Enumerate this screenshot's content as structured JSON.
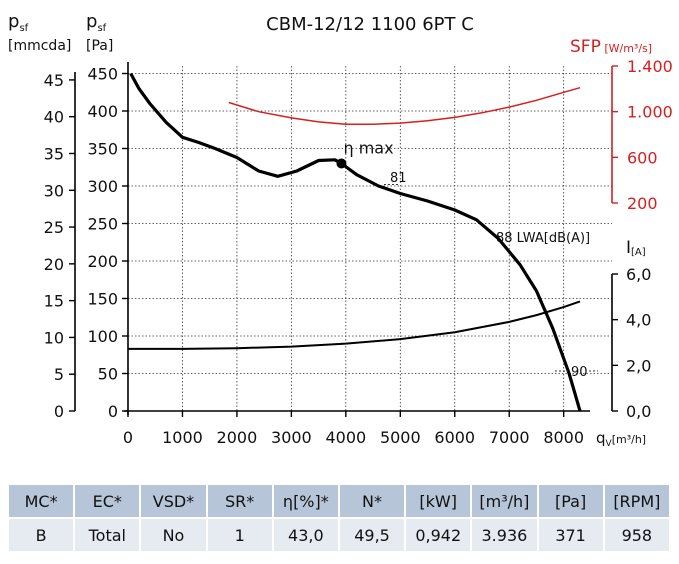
{
  "chart_data": {
    "type": "line",
    "title": "CBM-12/12 1100 6PT C",
    "xlabel": {
      "main": "q",
      "sub": "V",
      "unit": "[m³/h]"
    },
    "x_ticks": [
      0,
      1000,
      2000,
      3000,
      4000,
      5000,
      6000,
      7000,
      8000
    ],
    "xlim": [
      0,
      8600
    ],
    "y_left_outer": {
      "label_main": "p",
      "label_sub": "sf",
      "unit": "[mmcda]",
      "ticks": [
        0,
        5,
        10,
        15,
        20,
        25,
        30,
        35,
        40,
        45
      ]
    },
    "y_left_inner": {
      "label_main": "p",
      "label_sub": "sf",
      "unit": "[Pa]",
      "ticks": [
        0,
        50,
        100,
        150,
        200,
        250,
        300,
        350,
        400,
        450
      ],
      "ylim": [
        0,
        460
      ]
    },
    "y_right_sfp": {
      "label": "SFP",
      "unit": "[W/m³/s]",
      "ticks": [
        "200",
        "600",
        "1.000",
        "1.400"
      ],
      "ylim": [
        0,
        1400
      ],
      "color": "#d42020"
    },
    "y_right_current": {
      "label": "I",
      "unit": "[A]",
      "ticks": [
        "0,0",
        "2,0",
        "4,0",
        "6,0"
      ],
      "ylim": [
        0,
        6
      ]
    },
    "grid": true,
    "series": [
      {
        "role": "pressure",
        "unit": "Pa",
        "color": "#000000",
        "x": [
          50,
          200,
          400,
          700,
          1000,
          1300,
          1600,
          2000,
          2400,
          2750,
          3100,
          3500,
          3800,
          3920,
          4200,
          4600,
          5000,
          5500,
          6000,
          6400,
          6800,
          7200,
          7500,
          7800,
          8000,
          8100,
          8200,
          8300
        ],
        "y": [
          450,
          430,
          410,
          385,
          365,
          358,
          350,
          338,
          320,
          313,
          320,
          334,
          335,
          330,
          315,
          300,
          290,
          280,
          268,
          255,
          230,
          195,
          160,
          110,
          70,
          50,
          25,
          0
        ]
      },
      {
        "role": "sfp",
        "unit": "W/m³/s",
        "color": "#d42020",
        "x": [
          1850,
          2400,
          3000,
          3500,
          4000,
          4500,
          5000,
          5500,
          6000,
          6500,
          7000,
          7500,
          8000,
          8300
        ],
        "y": [
          1080,
          1000,
          945,
          910,
          890,
          890,
          900,
          920,
          950,
          990,
          1040,
          1100,
          1170,
          1210
        ]
      },
      {
        "role": "current",
        "unit": "A",
        "color": "#000000",
        "x": [
          0,
          1000,
          2000,
          3000,
          4000,
          5000,
          6000,
          7000,
          7500,
          8000,
          8300
        ],
        "y": [
          2.72,
          2.72,
          2.75,
          2.82,
          2.95,
          3.15,
          3.45,
          3.9,
          4.2,
          4.55,
          4.8
        ]
      }
    ],
    "annotations": [
      {
        "kind": "point-label",
        "text": "η max",
        "x": 3920,
        "y": 330
      },
      {
        "kind": "iso-sound",
        "text": "81",
        "x": 5000,
        "y": 300
      },
      {
        "kind": "iso-sound",
        "text": "88 LWA[dB(A)]",
        "x": 7000,
        "y": 232
      },
      {
        "kind": "iso-sound",
        "text": "90",
        "x": 8300,
        "y": 55
      }
    ]
  },
  "table": {
    "headers": [
      "MC*",
      "EC*",
      "VSD*",
      "SR*",
      "η[%]*",
      "N*",
      "[kW]",
      "[m³/h]",
      "[Pa]",
      "[RPM]"
    ],
    "row": [
      "B",
      "Total",
      "No",
      "1",
      "43,0",
      "49,5",
      "0,942",
      "3.936",
      "371",
      "958"
    ]
  }
}
